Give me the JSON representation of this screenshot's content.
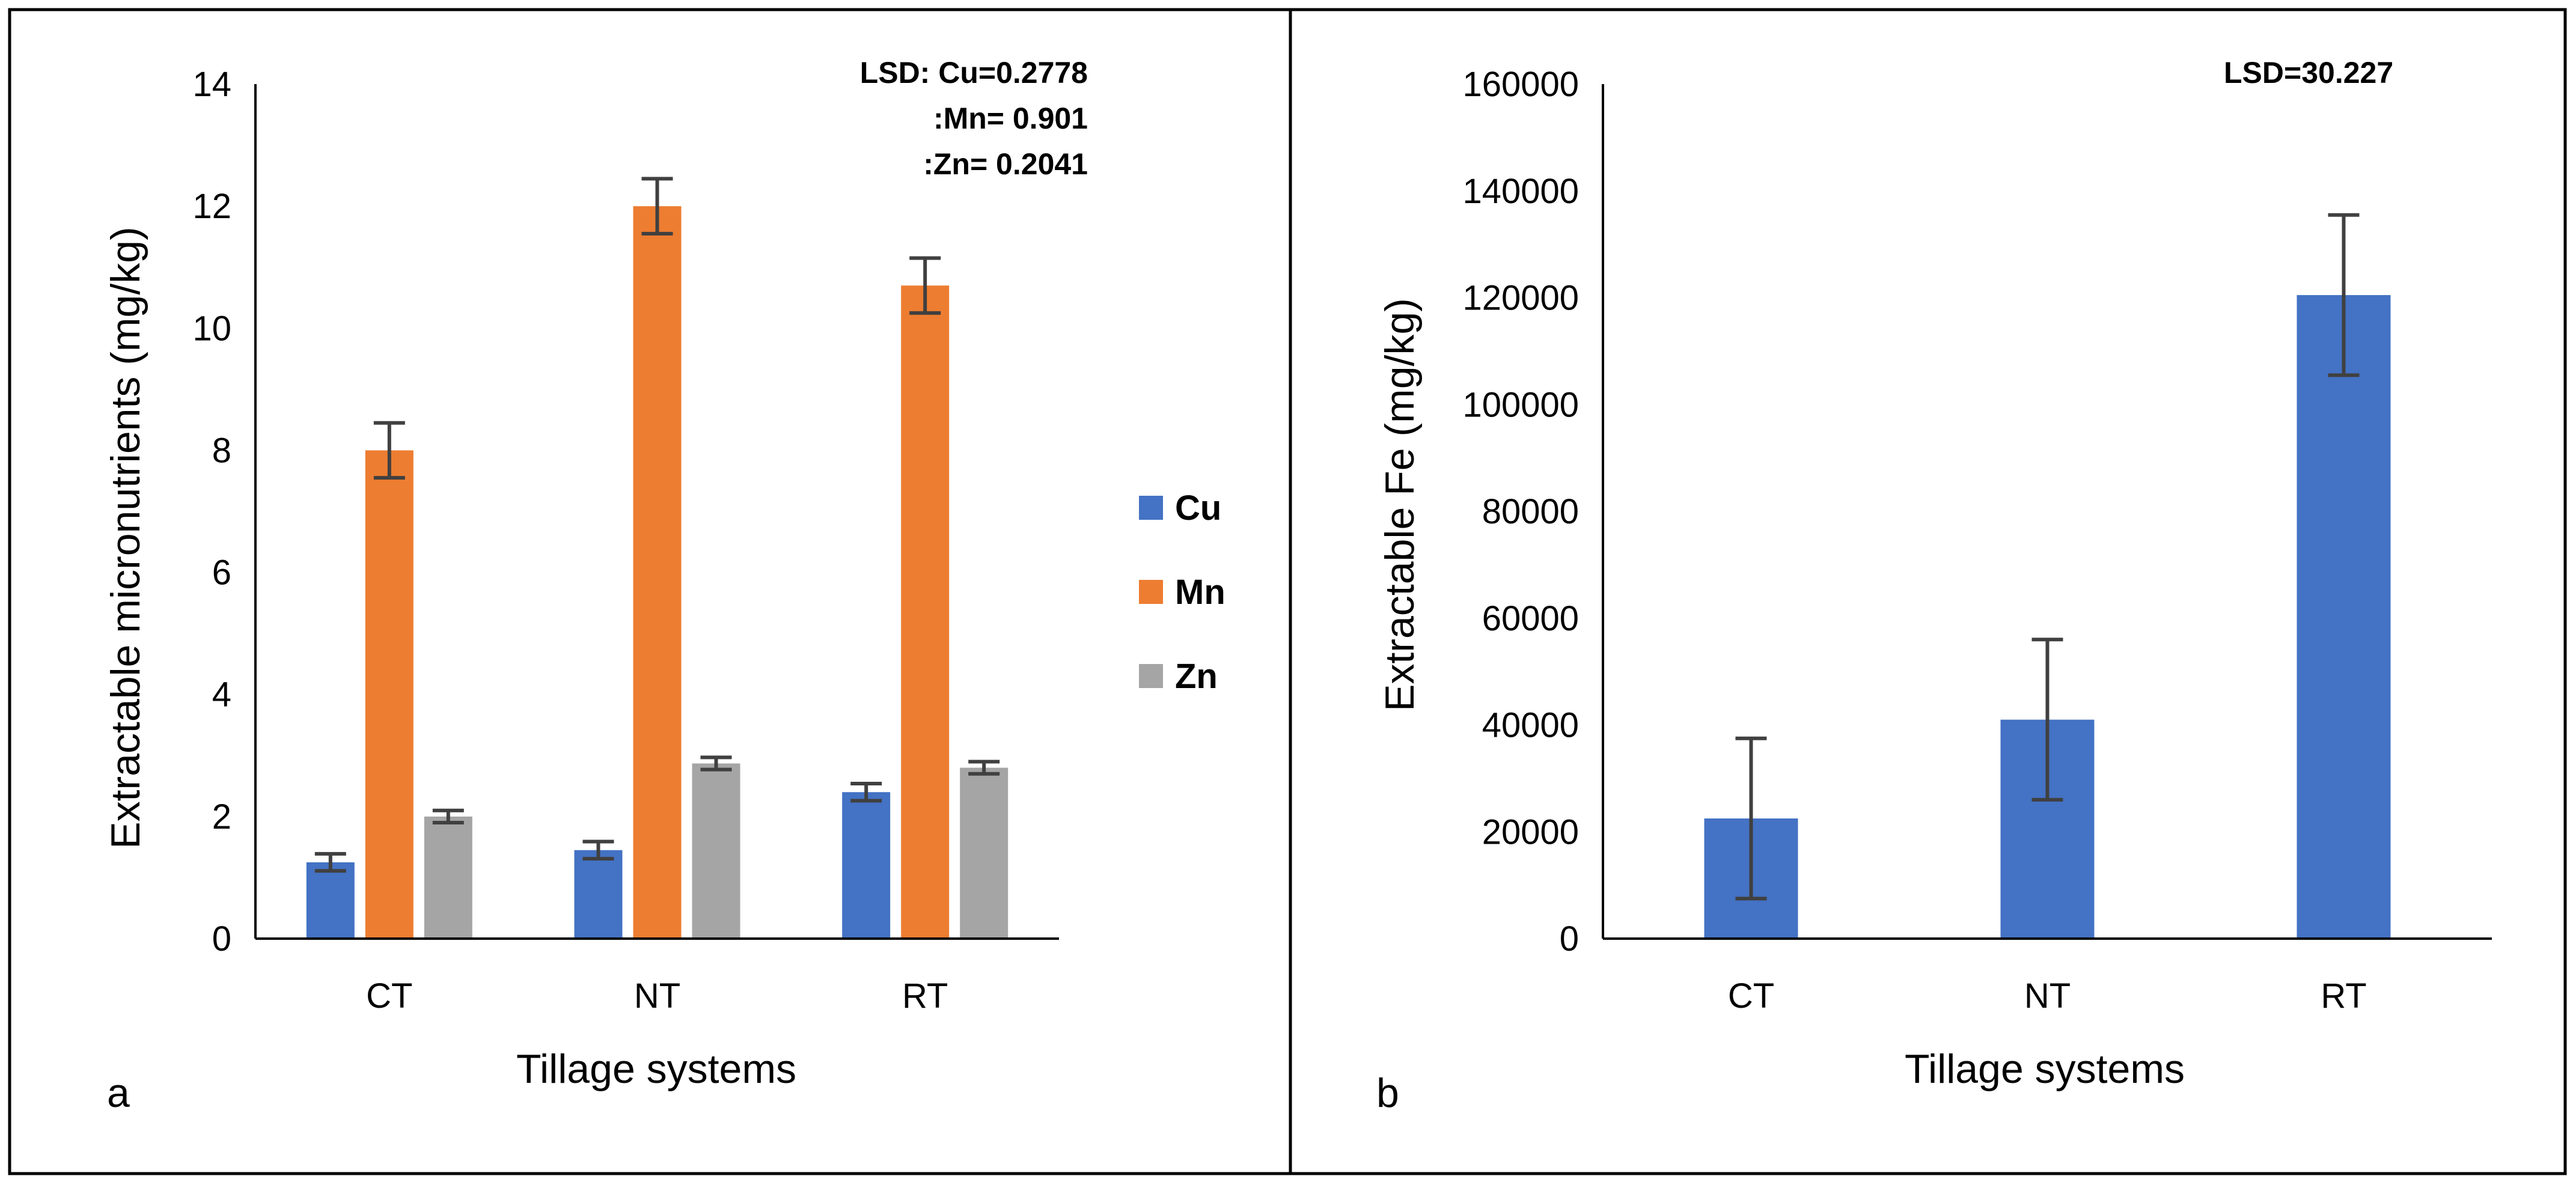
{
  "chart_data": [
    {
      "type": "bar",
      "panel_label": "a",
      "title": "",
      "xlabel": "Tillage systems",
      "ylabel": "Extractable micronutrients (mg/kg)",
      "categories": [
        "CT",
        "NT",
        "RT"
      ],
      "ylim": [
        0,
        14
      ],
      "yticks": [
        0,
        2,
        4,
        6,
        8,
        10,
        12,
        14
      ],
      "grid": false,
      "legend_position": "right",
      "series": [
        {
          "name": "Cu",
          "color": "#4472C4",
          "values": [
            1.25,
            1.45,
            2.4
          ],
          "errors": [
            0.14,
            0.14,
            0.14
          ]
        },
        {
          "name": "Mn",
          "color": "#ED7D31",
          "values": [
            8.0,
            12.0,
            10.7
          ],
          "errors": [
            0.45,
            0.45,
            0.45
          ]
        },
        {
          "name": "Zn",
          "color": "#A5A5A5",
          "values": [
            2.0,
            2.87,
            2.8
          ],
          "errors": [
            0.1,
            0.1,
            0.1
          ]
        }
      ],
      "annotations": [
        "LSD: Cu=0.2778",
        ":Mn= 0.901",
        ":Zn= 0.2041"
      ]
    },
    {
      "type": "bar",
      "panel_label": "b",
      "title": "",
      "xlabel": "Tillage systems",
      "ylabel": "Extractable Fe (mg/kg)",
      "categories": [
        "CT",
        "NT",
        "RT"
      ],
      "ylim": [
        0,
        160000
      ],
      "yticks": [
        0,
        20000,
        40000,
        60000,
        80000,
        100000,
        120000,
        140000,
        160000
      ],
      "grid": false,
      "series": [
        {
          "name": "Fe",
          "color": "#4472C4",
          "values": [
            22500,
            41000,
            120500
          ],
          "errors": [
            15000,
            15000,
            15000
          ]
        }
      ],
      "annotations": [
        "LSD=30.227"
      ]
    }
  ]
}
